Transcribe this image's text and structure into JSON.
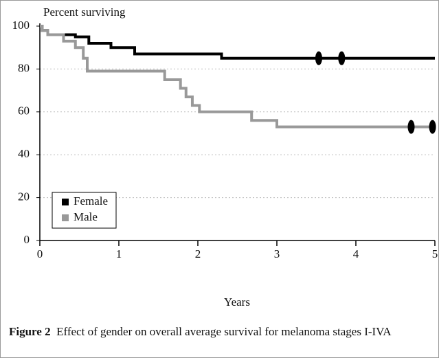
{
  "chart_data": {
    "type": "line",
    "ylabel": "Percent surviving",
    "xlabel": "Years",
    "caption_label": "Figure 2",
    "caption": "Effect of gender on overall average survival for melanoma stages I-IVA",
    "xlim": [
      0,
      5
    ],
    "xticks": [
      0,
      1,
      2,
      3,
      4,
      5
    ],
    "ylim": [
      0,
      100
    ],
    "yticks": [
      0,
      20,
      40,
      60,
      80,
      100
    ],
    "grid": true,
    "legend": "lower-left",
    "series": [
      {
        "name": "Female",
        "color": "#000000",
        "x": [
          0,
          0.03,
          0.03,
          0.1,
          0.1,
          0.45,
          0.45,
          0.62,
          0.62,
          0.9,
          0.9,
          1.2,
          1.2,
          2.3,
          2.3,
          5
        ],
        "values": [
          100,
          100,
          98,
          98,
          96,
          96,
          95,
          95,
          92,
          92,
          90,
          90,
          87,
          87,
          85,
          85
        ],
        "censored": {
          "x": [
            3.53,
            3.82
          ],
          "values": [
            85,
            85
          ]
        }
      },
      {
        "name": "Male",
        "color": "#999999",
        "x": [
          0,
          0.03,
          0.03,
          0.1,
          0.1,
          0.3,
          0.3,
          0.45,
          0.45,
          0.55,
          0.55,
          0.6,
          0.6,
          1.58,
          1.58,
          1.78,
          1.78,
          1.85,
          1.85,
          1.93,
          1.93,
          2.02,
          2.02,
          2.68,
          2.68,
          3.0,
          3.0,
          5
        ],
        "values": [
          100,
          100,
          98,
          98,
          96,
          96,
          93,
          93,
          90,
          90,
          85,
          85,
          79,
          79,
          75,
          75,
          71,
          71,
          67,
          67,
          63,
          63,
          60,
          60,
          56,
          56,
          53,
          53
        ],
        "censored": {
          "x": [
            4.7,
            4.97
          ],
          "values": [
            53,
            53
          ]
        }
      }
    ]
  }
}
